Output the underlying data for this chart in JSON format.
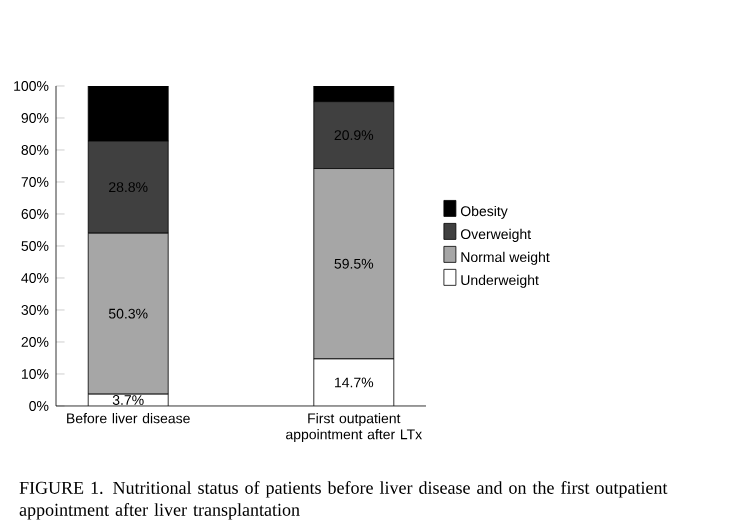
{
  "chart_data": {
    "type": "bar",
    "stacked": true,
    "categories": [
      "Before liver disease",
      "First outpatient appointment after LTx"
    ],
    "series": [
      {
        "name": "Underweight",
        "color": "#ffffff",
        "values": [
          3.7,
          14.7
        ],
        "value_labels": [
          "3.7%",
          "14.7%"
        ]
      },
      {
        "name": "Normal weight",
        "color": "#a6a6a6",
        "values": [
          50.3,
          59.5
        ],
        "value_labels": [
          "50.3%",
          "59.5%"
        ]
      },
      {
        "name": "Overweight",
        "color": "#404040",
        "values": [
          28.8,
          20.9
        ],
        "value_labels": [
          "28.8%",
          "20.9%"
        ]
      },
      {
        "name": "Obesity",
        "color": "#000000",
        "values": [
          17.2,
          4.9
        ],
        "value_labels": [
          null,
          null
        ]
      }
    ],
    "ylim": [
      0,
      100
    ],
    "yticks": [
      {
        "value": 0,
        "label": "0%"
      },
      {
        "value": 10,
        "label": "10%"
      },
      {
        "value": 20,
        "label": "20%"
      },
      {
        "value": 30,
        "label": "30%"
      },
      {
        "value": 40,
        "label": "40%"
      },
      {
        "value": 50,
        "label": "50%"
      },
      {
        "value": 60,
        "label": "60%"
      },
      {
        "value": 70,
        "label": "70%"
      },
      {
        "value": 80,
        "label": "80%"
      },
      {
        "value": 90,
        "label": "90%"
      },
      {
        "value": 100,
        "label": "100%"
      }
    ],
    "legend": "right",
    "annotations": [
      "FIGURE 1. Nutritional status of patients before liver disease and on the first outpatient appointment after liver transplantation"
    ]
  }
}
